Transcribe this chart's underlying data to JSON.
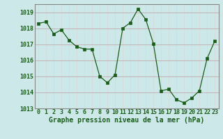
{
  "x": [
    0,
    1,
    2,
    3,
    4,
    5,
    6,
    7,
    8,
    9,
    10,
    11,
    12,
    13,
    14,
    15,
    16,
    17,
    18,
    19,
    20,
    21,
    22,
    23
  ],
  "y": [
    1018.3,
    1018.4,
    1017.65,
    1017.9,
    1017.25,
    1016.85,
    1016.7,
    1016.7,
    1015.0,
    1014.6,
    1015.1,
    1018.0,
    1018.35,
    1019.2,
    1018.55,
    1017.05,
    1014.1,
    1014.2,
    1013.55,
    1013.35,
    1013.65,
    1014.1,
    1016.1,
    1017.2
  ],
  "line_color": "#1a5c1a",
  "marker_color": "#1a5c1a",
  "bg_color": "#cce8e8",
  "grid_color_major": "#c0a0a0",
  "grid_color_minor": "#d8d8d8",
  "title": "Graphe pression niveau de la mer (hPa)",
  "title_color": "#1a5c1a",
  "ylim": [
    1013.0,
    1019.5
  ],
  "xlim": [
    -0.5,
    23.5
  ],
  "yticks": [
    1013,
    1014,
    1015,
    1016,
    1017,
    1018,
    1019
  ],
  "xticks": [
    0,
    1,
    2,
    3,
    4,
    5,
    6,
    7,
    8,
    9,
    10,
    11,
    12,
    13,
    14,
    15,
    16,
    17,
    18,
    19,
    20,
    21,
    22,
    23
  ],
  "title_fontsize": 7.0,
  "tick_fontsize": 6.0,
  "spine_color": "#888888"
}
